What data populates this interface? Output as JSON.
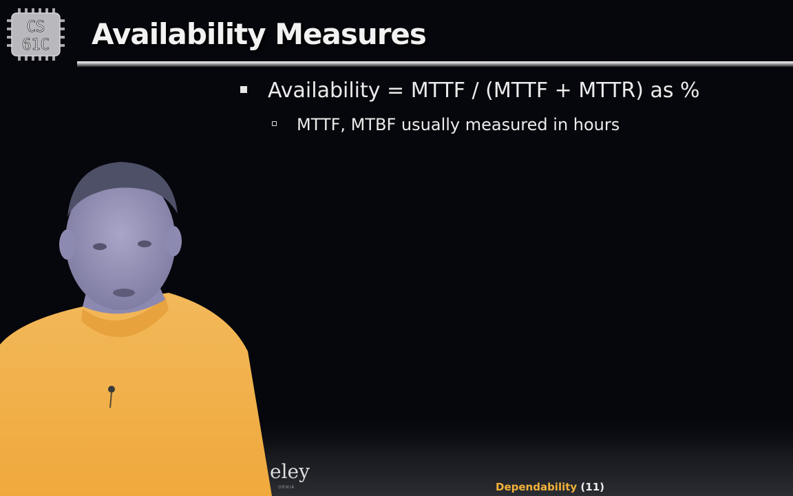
{
  "logo": {
    "line1": "CS",
    "line2": "61C"
  },
  "title": "Availability Measures",
  "bullets": [
    {
      "text": "Availability = MTTF / (MTTF + MTTR) as %",
      "sub": [
        "MTTF, MTBF usually measured in hours"
      ]
    }
  ],
  "watermark": {
    "text": "eley",
    "small": "ORNIA"
  },
  "footer": {
    "topic": "Dependability",
    "page": "(11)"
  },
  "colors": {
    "background": "#06070c",
    "text": "#ececec",
    "footer_topic": "#f2b13a",
    "logo_bg": "#b8b8bd"
  }
}
